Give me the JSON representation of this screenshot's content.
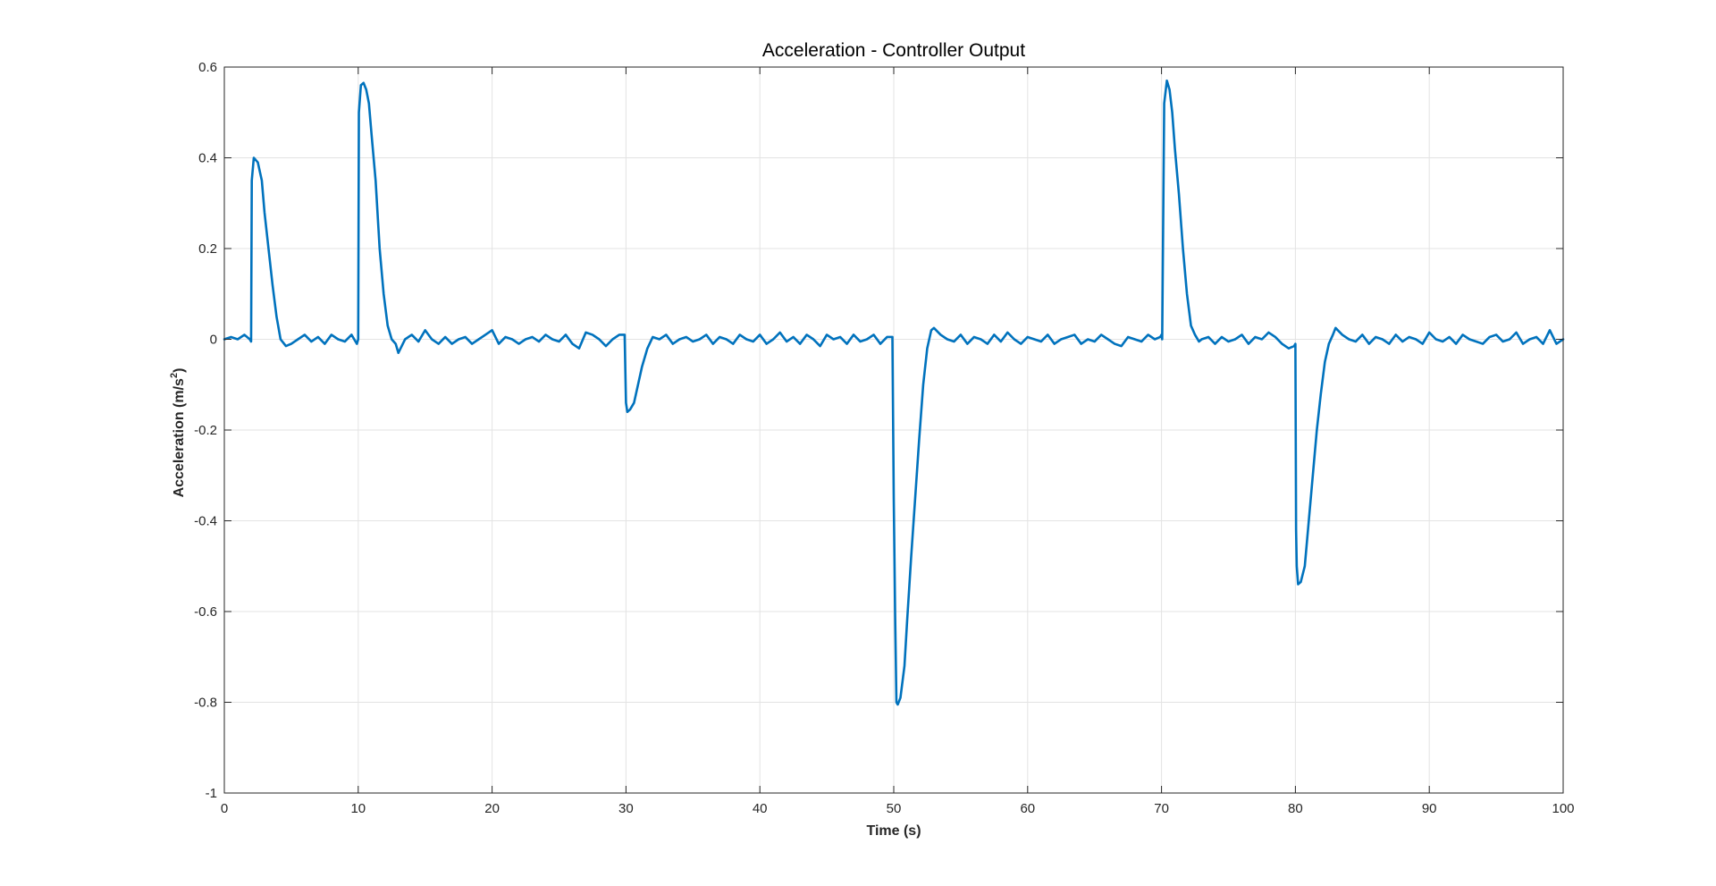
{
  "chart_data": {
    "type": "line",
    "title": "Acceleration - Controller Output",
    "xlabel": "Time (s)",
    "ylabel": {
      "base": "Acceleration (m/s",
      "sup": "2",
      "end": ")"
    },
    "xlim": [
      0,
      100
    ],
    "ylim": [
      -1,
      0.6
    ],
    "xticks": [
      0,
      10,
      20,
      30,
      40,
      50,
      60,
      70,
      80,
      90,
      100
    ],
    "xtick_labels": [
      "0",
      "10",
      "20",
      "30",
      "40",
      "50",
      "60",
      "70",
      "80",
      "90",
      "100"
    ],
    "yticks": [
      -1,
      -0.8,
      -0.6,
      -0.4,
      -0.2,
      0,
      0.2,
      0.4,
      0.6
    ],
    "ytick_labels": [
      "-1",
      "-0.8",
      "-0.6",
      "-0.4",
      "-0.2",
      "0",
      "0.2",
      "0.4",
      "0.6"
    ],
    "grid": true,
    "legend": "none",
    "colors": {
      "line": "#0072BD",
      "axis": "#262626",
      "grid": "#e3e3e3"
    },
    "series": [
      {
        "x": [
          0,
          0.5,
          1,
          1.5,
          1.9,
          2.0,
          2.05,
          2.2,
          2.5,
          2.8,
          3.0,
          3.3,
          3.6,
          3.9,
          4.2,
          4.6,
          5.0,
          5.5,
          6.0,
          6.5,
          7.0,
          7.5,
          8.0,
          8.5,
          9.0,
          9.5,
          9.9,
          10.0,
          10.05,
          10.2,
          10.4,
          10.6,
          10.8,
          11.0,
          11.3,
          11.6,
          11.9,
          12.2,
          12.5,
          12.8,
          13.0,
          13.5,
          14.0,
          14.5,
          15.0,
          15.5,
          16.0,
          16.5,
          17.0,
          17.5,
          18.0,
          18.5,
          19.0,
          19.5,
          20.0,
          20.5,
          21.0,
          21.5,
          22.0,
          22.5,
          23.0,
          23.5,
          24.0,
          24.5,
          25.0,
          25.5,
          26.0,
          26.5,
          27.0,
          27.5,
          28.0,
          28.5,
          29.0,
          29.5,
          29.9,
          30.0,
          30.1,
          30.3,
          30.6,
          30.9,
          31.2,
          31.6,
          32.0,
          32.5,
          33.0,
          33.5,
          34.0,
          34.5,
          35.0,
          35.5,
          36.0,
          36.5,
          37.0,
          37.5,
          38.0,
          38.5,
          39.0,
          39.5,
          40.0,
          40.5,
          41.0,
          41.5,
          42.0,
          42.5,
          43.0,
          43.5,
          44.0,
          44.5,
          45.0,
          45.5,
          46.0,
          46.5,
          47.0,
          47.5,
          48.0,
          48.5,
          49.0,
          49.5,
          49.9,
          50.0,
          50.1,
          50.2,
          50.3,
          50.5,
          50.8,
          51.0,
          51.3,
          51.6,
          51.9,
          52.2,
          52.5,
          52.8,
          53.0,
          53.5,
          54.0,
          54.5,
          55.0,
          55.5,
          56.0,
          56.5,
          57.0,
          57.5,
          58.0,
          58.5,
          59.0,
          59.5,
          60.0,
          60.5,
          61.0,
          61.5,
          62.0,
          62.5,
          63.0,
          63.5,
          64.0,
          64.5,
          65.0,
          65.5,
          66.0,
          66.5,
          67.0,
          67.5,
          68.0,
          68.5,
          69.0,
          69.5,
          69.9,
          70.0,
          70.05,
          70.2,
          70.4,
          70.6,
          70.8,
          71.0,
          71.3,
          71.6,
          71.9,
          72.2,
          72.5,
          72.8,
          73.0,
          73.5,
          74.0,
          74.5,
          75.0,
          75.5,
          76.0,
          76.5,
          77.0,
          77.5,
          78.0,
          78.5,
          79.0,
          79.5,
          79.9,
          80.0,
          80.05,
          80.1,
          80.2,
          80.4,
          80.7,
          81.0,
          81.3,
          81.6,
          81.9,
          82.2,
          82.5,
          82.8,
          83.0,
          83.5,
          84.0,
          84.5,
          85.0,
          85.5,
          86.0,
          86.5,
          87.0,
          87.5,
          88.0,
          88.5,
          89.0,
          89.5,
          90.0,
          90.5,
          91.0,
          91.5,
          92.0,
          92.5,
          93.0,
          93.5,
          94.0,
          94.5,
          95.0,
          95.5,
          96.0,
          96.5,
          97.0,
          97.5,
          98.0,
          98.5,
          99.0,
          99.5,
          100.0
        ],
        "y": [
          0.0,
          0.005,
          0.0,
          0.01,
          0.0,
          -0.005,
          0.35,
          0.4,
          0.39,
          0.35,
          0.28,
          0.2,
          0.12,
          0.05,
          0.0,
          -0.015,
          -0.01,
          0.0,
          0.01,
          -0.005,
          0.005,
          -0.01,
          0.01,
          0.0,
          -0.005,
          0.01,
          -0.01,
          0.0,
          0.5,
          0.56,
          0.565,
          0.55,
          0.52,
          0.45,
          0.35,
          0.2,
          0.1,
          0.03,
          0.0,
          -0.01,
          -0.03,
          0.0,
          0.01,
          -0.005,
          0.02,
          0.0,
          -0.01,
          0.005,
          -0.01,
          0.0,
          0.005,
          -0.01,
          0.0,
          0.01,
          0.02,
          -0.01,
          0.005,
          0.0,
          -0.01,
          0.0,
          0.005,
          -0.005,
          0.01,
          0.0,
          -0.005,
          0.01,
          -0.01,
          -0.02,
          0.015,
          0.01,
          0.0,
          -0.015,
          0.0,
          0.01,
          0.01,
          -0.14,
          -0.16,
          -0.155,
          -0.14,
          -0.1,
          -0.06,
          -0.02,
          0.005,
          0.0,
          0.01,
          -0.01,
          0.0,
          0.005,
          -0.005,
          0.0,
          0.01,
          -0.01,
          0.005,
          0.0,
          -0.01,
          0.01,
          0.0,
          -0.005,
          0.01,
          -0.01,
          0.0,
          0.015,
          -0.005,
          0.005,
          -0.01,
          0.01,
          0.0,
          -0.015,
          0.01,
          0.0,
          0.005,
          -0.01,
          0.01,
          -0.005,
          0.0,
          0.01,
          -0.01,
          0.005,
          0.005,
          -0.35,
          -0.6,
          -0.8,
          -0.805,
          -0.79,
          -0.72,
          -0.62,
          -0.48,
          -0.35,
          -0.22,
          -0.1,
          -0.02,
          0.02,
          0.025,
          0.01,
          0.0,
          -0.005,
          0.01,
          -0.01,
          0.005,
          0.0,
          -0.01,
          0.01,
          -0.005,
          0.015,
          0.0,
          -0.01,
          0.005,
          0.0,
          -0.005,
          0.01,
          -0.01,
          0.0,
          0.005,
          0.01,
          -0.01,
          0.0,
          -0.005,
          0.01,
          0.0,
          -0.01,
          -0.015,
          0.005,
          0.0,
          -0.005,
          0.01,
          0.0,
          0.005,
          0.01,
          0.0,
          0.52,
          0.57,
          0.55,
          0.5,
          0.42,
          0.32,
          0.2,
          0.1,
          0.03,
          0.01,
          -0.005,
          0.0,
          0.005,
          -0.01,
          0.005,
          -0.005,
          0.0,
          0.01,
          -0.01,
          0.005,
          0.0,
          0.015,
          0.005,
          -0.01,
          -0.02,
          -0.015,
          -0.01,
          -0.42,
          -0.5,
          -0.54,
          -0.535,
          -0.5,
          -0.4,
          -0.3,
          -0.2,
          -0.12,
          -0.05,
          -0.01,
          0.01,
          0.025,
          0.01,
          0.0,
          -0.005,
          0.01,
          -0.01,
          0.005,
          0.0,
          -0.01,
          0.01,
          -0.005,
          0.005,
          0.0,
          -0.01,
          0.015,
          0.0,
          -0.005,
          0.005,
          -0.01,
          0.01,
          0.0,
          -0.005,
          -0.01,
          0.005,
          0.01,
          -0.005,
          0.0,
          0.015,
          -0.01,
          0.0,
          0.005,
          -0.01,
          0.02,
          -0.01,
          0.0
        ]
      }
    ]
  }
}
